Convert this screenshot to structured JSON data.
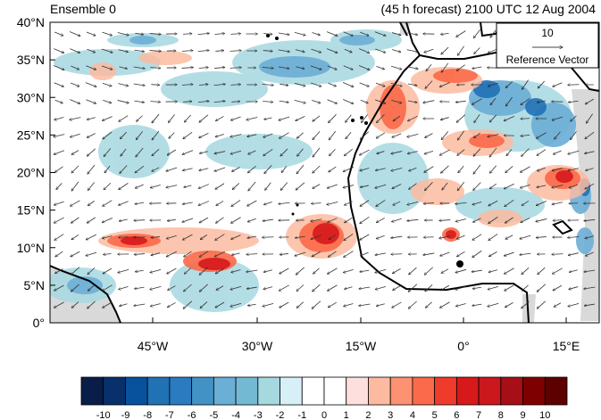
{
  "title_left": "Ensemble 0",
  "title_right": "(45 h forecast) 2100 UTC 12 Aug 2004",
  "reference_vector": {
    "magnitude": "10",
    "label": "Reference Vector"
  },
  "axes": {
    "lat_ticks": [
      "40°N",
      "35°N",
      "30°N",
      "25°N",
      "20°N",
      "15°N",
      "10°N",
      "5°N",
      "0°"
    ],
    "lon_ticks": [
      "45°W",
      "30°W",
      "15°W",
      "0°",
      "15°E"
    ]
  },
  "colorbar": {
    "labels": [
      "-10",
      "-9",
      "-8",
      "-7",
      "-6",
      "-5",
      "-4",
      "-3",
      "-2",
      "-1",
      "0",
      "1",
      "2",
      "3",
      "4",
      "5",
      "6",
      "7",
      "8",
      "9",
      "10"
    ],
    "colors": [
      "#081d48",
      "#08306b",
      "#08519c",
      "#2171b5",
      "#2a7bbf",
      "#4292c6",
      "#6baed6",
      "#74b9d4",
      "#a6d8e0",
      "#d7f0f8",
      "#ffffff",
      "#ffffff",
      "#fde0dd",
      "#fcbba1",
      "#fc9272",
      "#fb6a4a",
      "#ef3b2c",
      "#d7191c",
      "#cb181d",
      "#a50f15",
      "#7f0000",
      "#5c0000"
    ]
  },
  "map": {
    "land_color": "#d9d9d9",
    "coast_color": "#000000",
    "warm_color": "#e8463a",
    "cool_color": "#3a8cc4"
  }
}
